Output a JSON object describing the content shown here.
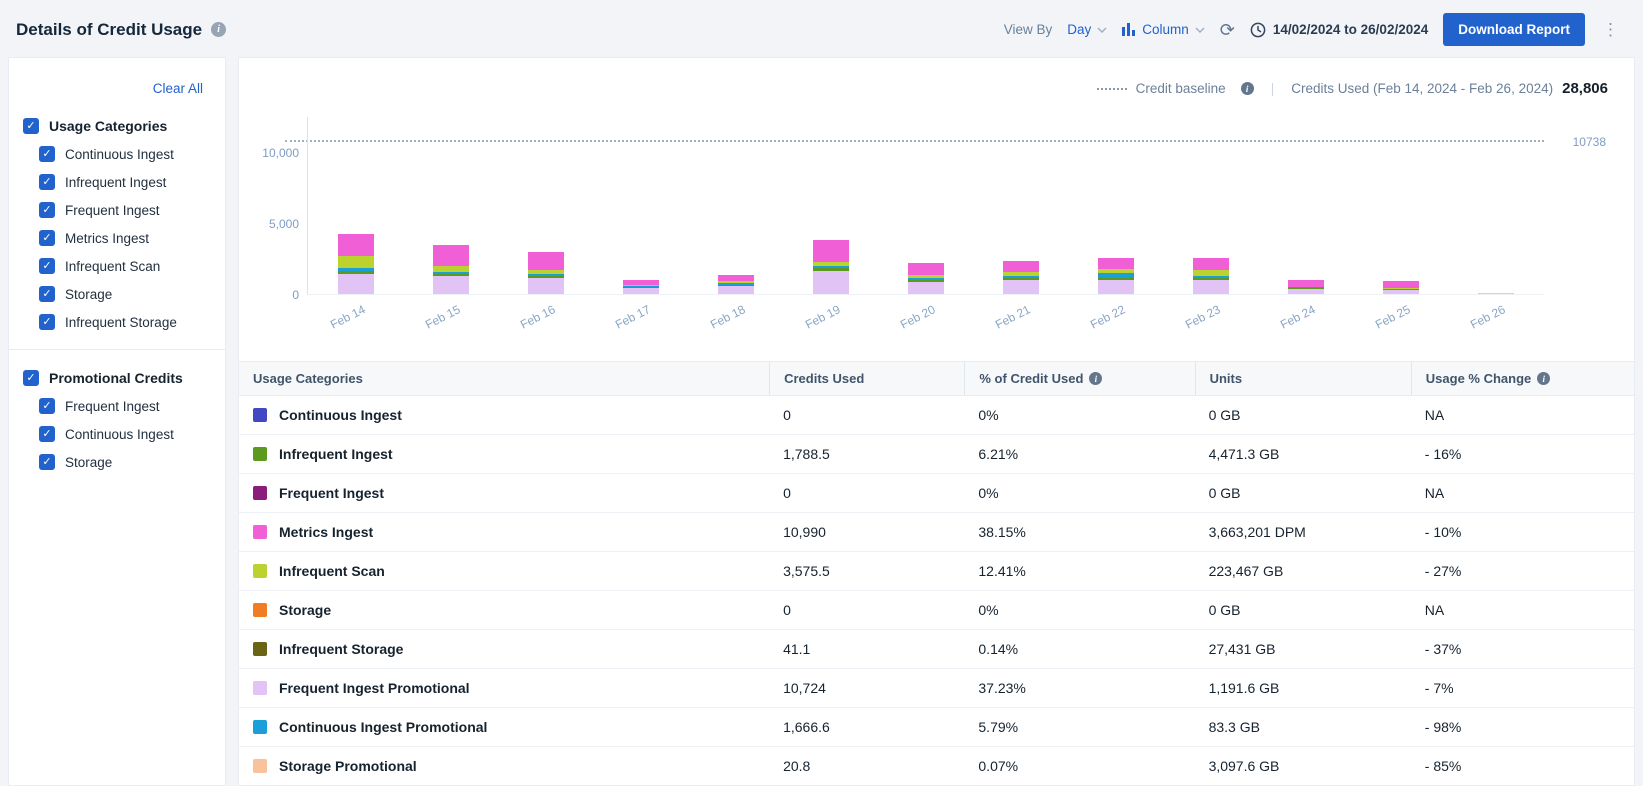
{
  "page": {
    "title": "Details of Credit Usage"
  },
  "header": {
    "view_by_label": "View By",
    "view_by_value": "Day",
    "chart_type": "Column",
    "date_range": "14/02/2024 to 26/02/2024",
    "download_label": "Download Report"
  },
  "sidebar": {
    "clear_all": "Clear All",
    "groups": [
      {
        "label": "Usage Categories",
        "checked": true,
        "items": [
          "Continuous Ingest",
          "Infrequent Ingest",
          "Frequent Ingest",
          "Metrics Ingest",
          "Infrequent Scan",
          "Storage",
          "Infrequent Storage"
        ]
      },
      {
        "label": "Promotional Credits",
        "checked": true,
        "items": [
          "Frequent Ingest",
          "Continuous Ingest",
          "Storage"
        ]
      }
    ]
  },
  "legend": {
    "baseline_label": "Credit baseline",
    "credits_used_label": "Credits Used (Feb 14, 2024 - Feb 26, 2024)",
    "credits_used_value": "28,806",
    "baseline_value_label": "10738"
  },
  "chart_data": {
    "type": "bar",
    "stacked": true,
    "title": "Details of Credit Usage",
    "categories": [
      "Feb 14",
      "Feb 15",
      "Feb 16",
      "Feb 17",
      "Feb 18",
      "Feb 19",
      "Feb 20",
      "Feb 21",
      "Feb 22",
      "Feb 23",
      "Feb 24",
      "Feb 25",
      "Feb 26"
    ],
    "series": [
      {
        "name": "Frequent Ingest Promotional",
        "color": "#e2c3f5",
        "values": [
          1400,
          1250,
          1100,
          420,
          580,
          1650,
          850,
          950,
          950,
          950,
          380,
          280,
          64
        ]
      },
      {
        "name": "Infrequent Ingest",
        "color": "#5b9a1d",
        "values": [
          250,
          180,
          160,
          60,
          80,
          180,
          140,
          160,
          160,
          160,
          40,
          30,
          0
        ]
      },
      {
        "name": "Continuous Ingest Promotional",
        "color": "#1b9fd8",
        "values": [
          200,
          150,
          150,
          80,
          90,
          150,
          130,
          170,
          350,
          130,
          40,
          30,
          0
        ]
      },
      {
        "name": "Infrequent Scan",
        "color": "#bcd22f",
        "values": [
          800,
          380,
          280,
          100,
          150,
          300,
          250,
          260,
          300,
          430,
          60,
          60,
          0
        ]
      },
      {
        "name": "Metrics Ingest",
        "color": "#f05fd5",
        "values": [
          1550,
          1500,
          1250,
          320,
          420,
          1500,
          830,
          810,
          800,
          830,
          480,
          500,
          20
        ]
      }
    ],
    "baseline": 10738,
    "yticks": [
      0,
      5000,
      10000
    ],
    "ylabels": [
      "0",
      "5,000",
      "10,000"
    ],
    "ylim": [
      0,
      11800
    ],
    "legend_position": "top-right",
    "grid": false
  },
  "table": {
    "columns": [
      "Usage Categories",
      "Credits Used",
      "% of Credit Used",
      "Units",
      "Usage % Change"
    ],
    "info_columns": [
      2,
      4
    ],
    "rows": [
      {
        "name": "Continuous Ingest",
        "color": "#4347c4",
        "credits": "0",
        "pct": "0%",
        "units": "0 GB",
        "change": "NA"
      },
      {
        "name": "Infrequent Ingest",
        "color": "#5b9a1d",
        "credits": "1,788.5",
        "pct": "6.21%",
        "units": "4,471.3 GB",
        "change": "- 16%"
      },
      {
        "name": "Frequent Ingest",
        "color": "#8a1c7c",
        "credits": "0",
        "pct": "0%",
        "units": "0 GB",
        "change": "NA"
      },
      {
        "name": "Metrics Ingest",
        "color": "#f05fd5",
        "credits": "10,990",
        "pct": "38.15%",
        "units": "3,663,201 DPM",
        "change": "- 10%"
      },
      {
        "name": "Infrequent Scan",
        "color": "#bcd22f",
        "credits": "3,575.5",
        "pct": "12.41%",
        "units": "223,467 GB",
        "change": "- 27%"
      },
      {
        "name": "Storage",
        "color": "#f07d23",
        "credits": "0",
        "pct": "0%",
        "units": "0 GB",
        "change": "NA"
      },
      {
        "name": "Infrequent Storage",
        "color": "#6b6414",
        "credits": "41.1",
        "pct": "0.14%",
        "units": "27,431 GB",
        "change": "- 37%"
      },
      {
        "name": "Frequent Ingest Promotional",
        "color": "#e2c3f5",
        "credits": "10,724",
        "pct": "37.23%",
        "units": "1,191.6 GB",
        "change": "- 7%"
      },
      {
        "name": "Continuous Ingest Promotional",
        "color": "#1b9fd8",
        "credits": "1,666.6",
        "pct": "5.79%",
        "units": "83.3 GB",
        "change": "- 98%"
      },
      {
        "name": "Storage Promotional",
        "color": "#f8c39b",
        "credits": "20.8",
        "pct": "0.07%",
        "units": "3,097.6 GB",
        "change": "- 85%"
      }
    ]
  }
}
